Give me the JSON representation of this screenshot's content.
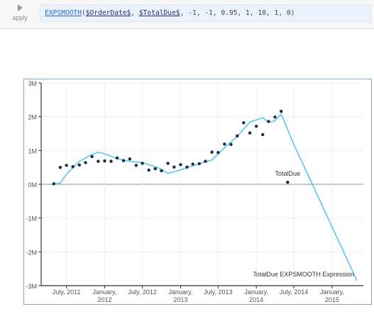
{
  "toolbar": {
    "apply_label": "apply",
    "expression": {
      "function": "EXPSMOOTH",
      "open_paren": "(",
      "arg1": "$OrderDate$",
      "sep1": ", ",
      "arg2": "$TotalDue$",
      "rest": ", -1, -1, 0.95, 1, 10, 1, 0)"
    }
  },
  "colors": {
    "points": "#1b2a4a",
    "smooth_line": "#5bc6ee",
    "zero_line": "#a8a8a8",
    "frame": "#8aa5cc",
    "axis": "#333333"
  },
  "chart_data": {
    "type": "scatter",
    "title": "",
    "xlabel": "",
    "ylabel": "",
    "grid": true,
    "ylim": [
      -3000000,
      3000000
    ],
    "xlim": [
      "2011-03-01",
      "2015-06-01"
    ],
    "y_ticks": [
      3000000,
      2000000,
      1000000,
      0,
      -1000000,
      -2000000,
      -3000000
    ],
    "y_tick_labels": [
      "3M",
      "2M",
      "1M",
      "0M",
      "-1M",
      "-2M",
      "-3M"
    ],
    "x_ticks": [
      {
        "date": "2011-07-01",
        "line1": "July, 2011",
        "line2": ""
      },
      {
        "date": "2012-01-01",
        "line1": "January,",
        "line2": "2012"
      },
      {
        "date": "2012-07-01",
        "line1": "July, 2012",
        "line2": ""
      },
      {
        "date": "2013-01-01",
        "line1": "January,",
        "line2": "2013"
      },
      {
        "date": "2013-07-01",
        "line1": "July, 2013",
        "line2": ""
      },
      {
        "date": "2014-01-01",
        "line1": "January,",
        "line2": "2014"
      },
      {
        "date": "2014-07-01",
        "line1": "July, 2014",
        "line2": ""
      },
      {
        "date": "2015-01-01",
        "line1": "January,",
        "line2": "2015"
      }
    ],
    "series": [
      {
        "name": "TotalDue",
        "kind": "scatter",
        "label_at_last_point": true,
        "points": [
          {
            "x": "2011-05-01",
            "y": 15000
          },
          {
            "x": "2011-06-01",
            "y": 500000
          },
          {
            "x": "2011-07-01",
            "y": 560000
          },
          {
            "x": "2011-08-01",
            "y": 520000
          },
          {
            "x": "2011-09-01",
            "y": 570000
          },
          {
            "x": "2011-10-01",
            "y": 640000
          },
          {
            "x": "2011-11-01",
            "y": 820000
          },
          {
            "x": "2011-12-01",
            "y": 680000
          },
          {
            "x": "2012-01-01",
            "y": 690000
          },
          {
            "x": "2012-02-01",
            "y": 680000
          },
          {
            "x": "2012-03-01",
            "y": 780000
          },
          {
            "x": "2012-04-01",
            "y": 700000
          },
          {
            "x": "2012-05-01",
            "y": 750000
          },
          {
            "x": "2012-06-01",
            "y": 560000
          },
          {
            "x": "2012-07-01",
            "y": 620000
          },
          {
            "x": "2012-08-01",
            "y": 420000
          },
          {
            "x": "2012-09-01",
            "y": 460000
          },
          {
            "x": "2012-10-01",
            "y": 400000
          },
          {
            "x": "2012-11-01",
            "y": 620000
          },
          {
            "x": "2012-12-01",
            "y": 510000
          },
          {
            "x": "2013-01-01",
            "y": 580000
          },
          {
            "x": "2013-02-01",
            "y": 510000
          },
          {
            "x": "2013-03-01",
            "y": 600000
          },
          {
            "x": "2013-04-01",
            "y": 610000
          },
          {
            "x": "2013-05-01",
            "y": 680000
          },
          {
            "x": "2013-06-01",
            "y": 950000
          },
          {
            "x": "2013-07-01",
            "y": 940000
          },
          {
            "x": "2013-08-01",
            "y": 1190000
          },
          {
            "x": "2013-09-01",
            "y": 1180000
          },
          {
            "x": "2013-10-01",
            "y": 1430000
          },
          {
            "x": "2013-11-01",
            "y": 1820000
          },
          {
            "x": "2013-12-01",
            "y": 1520000
          },
          {
            "x": "2014-01-01",
            "y": 1720000
          },
          {
            "x": "2014-02-01",
            "y": 1470000
          },
          {
            "x": "2014-03-01",
            "y": 1860000
          },
          {
            "x": "2014-04-01",
            "y": 1990000
          },
          {
            "x": "2014-05-01",
            "y": 2160000
          },
          {
            "x": "2014-06-01",
            "y": 60000
          }
        ]
      },
      {
        "name": "TotalDue EXPSMOOTH Expression",
        "kind": "line",
        "label_at_end": true,
        "points": [
          {
            "x": "2011-05-01",
            "y": 15000
          },
          {
            "x": "2011-06-01",
            "y": 30000
          },
          {
            "x": "2011-07-01",
            "y": 300000
          },
          {
            "x": "2011-09-01",
            "y": 680000
          },
          {
            "x": "2011-11-01",
            "y": 880000
          },
          {
            "x": "2011-12-01",
            "y": 950000
          },
          {
            "x": "2012-01-01",
            "y": 900000
          },
          {
            "x": "2012-03-01",
            "y": 760000
          },
          {
            "x": "2012-05-01",
            "y": 680000
          },
          {
            "x": "2012-07-01",
            "y": 640000
          },
          {
            "x": "2012-09-01",
            "y": 520000
          },
          {
            "x": "2012-10-01",
            "y": 440000
          },
          {
            "x": "2012-11-01",
            "y": 320000
          },
          {
            "x": "2012-12-01",
            "y": 370000
          },
          {
            "x": "2013-02-01",
            "y": 490000
          },
          {
            "x": "2013-04-01",
            "y": 610000
          },
          {
            "x": "2013-06-01",
            "y": 720000
          },
          {
            "x": "2013-08-01",
            "y": 1080000
          },
          {
            "x": "2013-10-01",
            "y": 1420000
          },
          {
            "x": "2013-12-01",
            "y": 1840000
          },
          {
            "x": "2014-02-01",
            "y": 1970000
          },
          {
            "x": "2014-03-01",
            "y": 1830000
          },
          {
            "x": "2014-04-01",
            "y": 1880000
          },
          {
            "x": "2014-05-01",
            "y": 2080000
          },
          {
            "x": "2014-07-01",
            "y": 1180000
          },
          {
            "x": "2015-05-01",
            "y": -2850000
          }
        ]
      }
    ]
  }
}
